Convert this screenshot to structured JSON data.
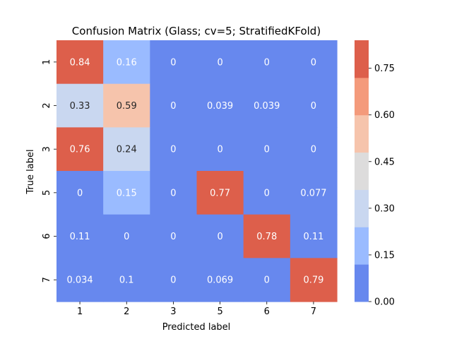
{
  "chart_data": {
    "type": "heatmap",
    "title": "Confusion Matrix (Glass; cv=5; StratifiedKFold)",
    "xlabel": "Predicted label",
    "ylabel": "True label",
    "x_categories": [
      "1",
      "2",
      "3",
      "5",
      "6",
      "7"
    ],
    "y_categories": [
      "1",
      "2",
      "3",
      "5",
      "6",
      "7"
    ],
    "matrix": [
      [
        0.84,
        0.16,
        0,
        0,
        0,
        0
      ],
      [
        0.33,
        0.59,
        0,
        0.039,
        0.039,
        0
      ],
      [
        0.76,
        0.24,
        0,
        0,
        0,
        0
      ],
      [
        0,
        0.15,
        0,
        0.77,
        0,
        0.077
      ],
      [
        0.11,
        0,
        0,
        0,
        0.78,
        0.11
      ],
      [
        0.034,
        0.1,
        0,
        0.069,
        0,
        0.79
      ]
    ],
    "annotations": [
      [
        "0.84",
        "0.16",
        "0",
        "0",
        "0",
        "0"
      ],
      [
        "0.33",
        "0.59",
        "0",
        "0.039",
        "0.039",
        "0"
      ],
      [
        "0.76",
        "0.24",
        "0",
        "0",
        "0",
        "0"
      ],
      [
        "0",
        "0.15",
        "0",
        "0.77",
        "0",
        "0.077"
      ],
      [
        "0.11",
        "0",
        "0",
        "0",
        "0.78",
        "0.11"
      ],
      [
        "0.034",
        "0.1",
        "0",
        "0.069",
        "0",
        "0.79"
      ]
    ],
    "colorbar": {
      "range": [
        0,
        0.84
      ],
      "ticks": [
        0.0,
        0.15,
        0.3,
        0.45,
        0.6,
        0.75
      ],
      "tick_labels": [
        "0.00",
        "0.15",
        "0.30",
        "0.45",
        "0.60",
        "0.75"
      ],
      "colors": [
        "#6788ee",
        "#9abbff",
        "#c9d7f0",
        "#dddcdc",
        "#f6c4ac",
        "#f49a7b",
        "#dd5f4b"
      ]
    },
    "text_colors": {
      "light": "#ffffff",
      "dark": "#262626"
    }
  }
}
